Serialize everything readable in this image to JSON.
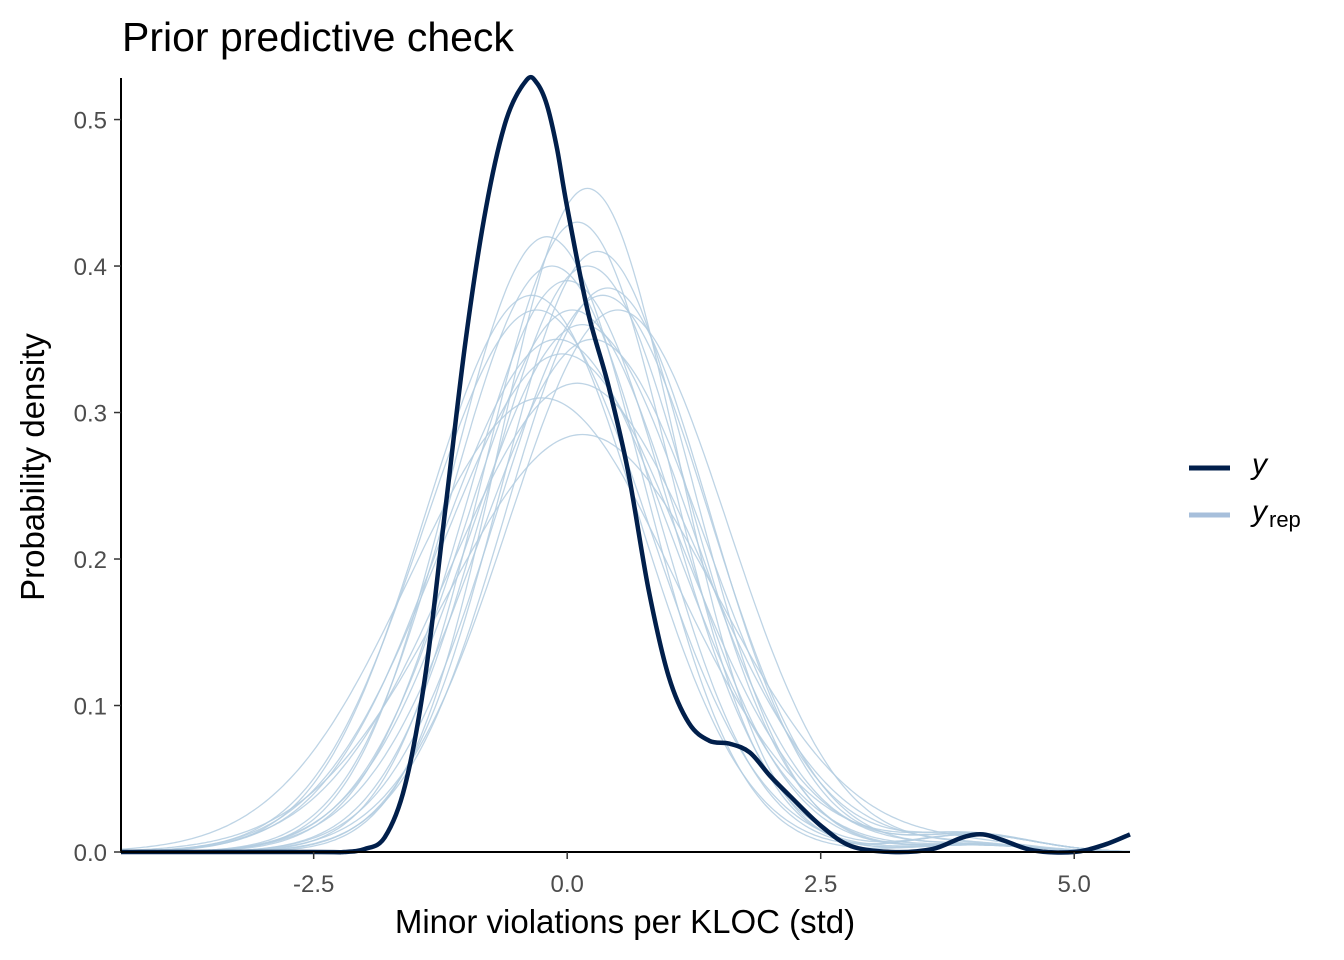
{
  "chart_data": {
    "type": "line",
    "title": "Prior predictive check",
    "xlabel": "Minor violations per KLOC (std)",
    "ylabel": "Probability density",
    "xlim": [
      -4.4,
      5.55
    ],
    "ylim": [
      0,
      0.527
    ],
    "x_ticks": [
      -2.5,
      0.0,
      2.5,
      5.0
    ],
    "x_tick_labels": [
      "-2.5",
      "0.0",
      "2.5",
      "5.0"
    ],
    "y_ticks": [
      0.0,
      0.1,
      0.2,
      0.3,
      0.4,
      0.5
    ],
    "y_tick_labels": [
      "0.0",
      "0.1",
      "0.2",
      "0.3",
      "0.4",
      "0.5"
    ],
    "grid": false,
    "legend_position": "right",
    "legend": [
      {
        "label": "y",
        "subscript": "",
        "color": "#011f4b"
      },
      {
        "label": "y",
        "subscript": "rep",
        "color": "#b3cde0"
      }
    ],
    "colors": {
      "y": "#011f4b",
      "y_rep": "#b3cde0",
      "y_rep_legend": "#a7bfdb",
      "axis": "#000000"
    },
    "y_series": {
      "name": "y",
      "x": [
        -4.4,
        -2.5,
        -2.2,
        -2.0,
        -1.8,
        -1.6,
        -1.4,
        -1.2,
        -1.0,
        -0.8,
        -0.6,
        -0.4,
        -0.3,
        -0.2,
        -0.1,
        0.0,
        0.2,
        0.4,
        0.6,
        0.8,
        1.0,
        1.2,
        1.4,
        1.6,
        1.8,
        2.0,
        2.2,
        2.5,
        2.8,
        3.2,
        3.6,
        3.9,
        4.1,
        4.3,
        4.6,
        5.0,
        5.3,
        5.55
      ],
      "y": [
        0.0,
        0.0,
        0.0,
        0.002,
        0.01,
        0.045,
        0.12,
        0.235,
        0.35,
        0.44,
        0.5,
        0.527,
        0.525,
        0.51,
        0.48,
        0.44,
        0.37,
        0.32,
        0.26,
        0.18,
        0.12,
        0.088,
        0.076,
        0.074,
        0.068,
        0.052,
        0.038,
        0.018,
        0.004,
        0.0,
        0.002,
        0.01,
        0.012,
        0.008,
        0.001,
        0.0,
        0.005,
        0.012
      ]
    },
    "y_rep_series": [
      {
        "shift": -0.35,
        "scale": 1.05,
        "peak": 0.38
      },
      {
        "shift": -0.3,
        "scale": 1.1,
        "peak": 0.37
      },
      {
        "shift": -0.2,
        "scale": 0.95,
        "peak": 0.42
      },
      {
        "shift": -0.15,
        "scale": 1.0,
        "peak": 0.4
      },
      {
        "shift": -0.1,
        "scale": 1.15,
        "peak": 0.35
      },
      {
        "shift": -0.05,
        "scale": 1.2,
        "peak": 0.34
      },
      {
        "shift": 0.0,
        "scale": 1.0,
        "peak": 0.39
      },
      {
        "shift": 0.05,
        "scale": 1.05,
        "peak": 0.37
      },
      {
        "shift": 0.1,
        "scale": 0.92,
        "peak": 0.43
      },
      {
        "shift": 0.15,
        "scale": 1.1,
        "peak": 0.36
      },
      {
        "shift": 0.2,
        "scale": 0.88,
        "peak": 0.453
      },
      {
        "shift": 0.2,
        "scale": 1.0,
        "peak": 0.4
      },
      {
        "shift": 0.25,
        "scale": 1.12,
        "peak": 0.35
      },
      {
        "shift": 0.3,
        "scale": 0.95,
        "peak": 0.41
      },
      {
        "shift": 0.35,
        "scale": 1.05,
        "peak": 0.38
      },
      {
        "shift": 0.4,
        "scale": 1.0,
        "peak": 0.385
      },
      {
        "shift": 0.5,
        "scale": 1.08,
        "peak": 0.37
      },
      {
        "shift": 0.1,
        "scale": 1.25,
        "peak": 0.32
      },
      {
        "shift": -0.25,
        "scale": 1.3,
        "peak": 0.31
      },
      {
        "shift": 0.15,
        "scale": 1.35,
        "peak": 0.285
      }
    ]
  }
}
